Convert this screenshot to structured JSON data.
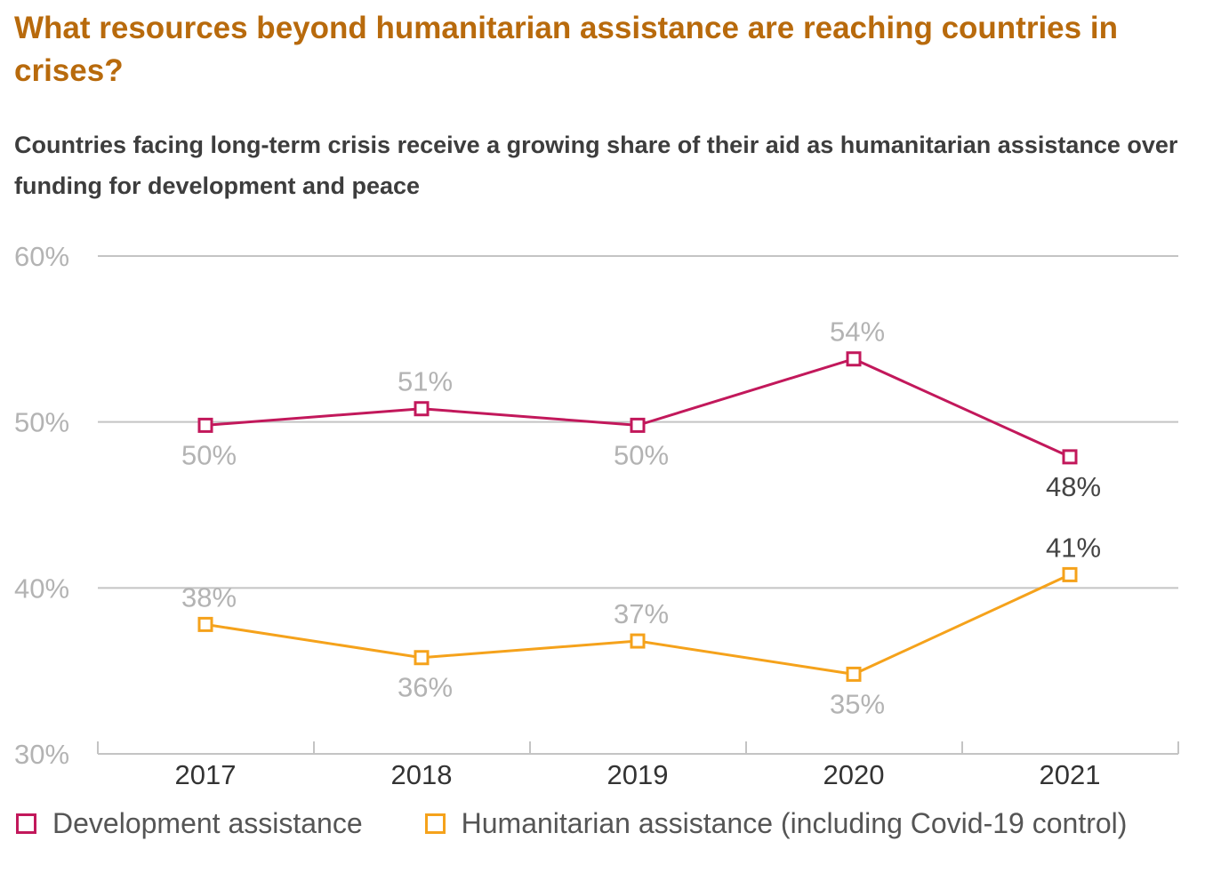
{
  "title": "What resources beyond humanitarian assistance are reaching countries in crises?",
  "subtitle": "Countries facing long-term crisis receive a growing share of their aid as humanitarian assistance over funding for development and peace",
  "chart_data": {
    "type": "line",
    "categories": [
      "2017",
      "2018",
      "2019",
      "2020",
      "2021"
    ],
    "ylim": [
      30,
      60
    ],
    "yticks": [
      30,
      40,
      50,
      60
    ],
    "ytick_labels": [
      "30%",
      "40%",
      "50%",
      "60%"
    ],
    "grid": true,
    "legend_position": "bottom",
    "series": [
      {
        "name": "Development assistance",
        "color": "#c2185b",
        "values": [
          49.8,
          50.8,
          49.8,
          53.8,
          47.9
        ],
        "labels": [
          "50%",
          "51%",
          "50%",
          "54%",
          "48%"
        ],
        "label_positions": [
          "below",
          "above",
          "below",
          "above",
          "below"
        ]
      },
      {
        "name": "Humanitarian assistance (including Covid-19 control)",
        "color": "#f5a21b",
        "values": [
          37.8,
          35.8,
          36.8,
          34.8,
          40.8
        ],
        "labels": [
          "38%",
          "36%",
          "37%",
          "35%",
          "41%"
        ],
        "label_positions": [
          "above",
          "below",
          "above",
          "below",
          "above"
        ]
      }
    ]
  }
}
